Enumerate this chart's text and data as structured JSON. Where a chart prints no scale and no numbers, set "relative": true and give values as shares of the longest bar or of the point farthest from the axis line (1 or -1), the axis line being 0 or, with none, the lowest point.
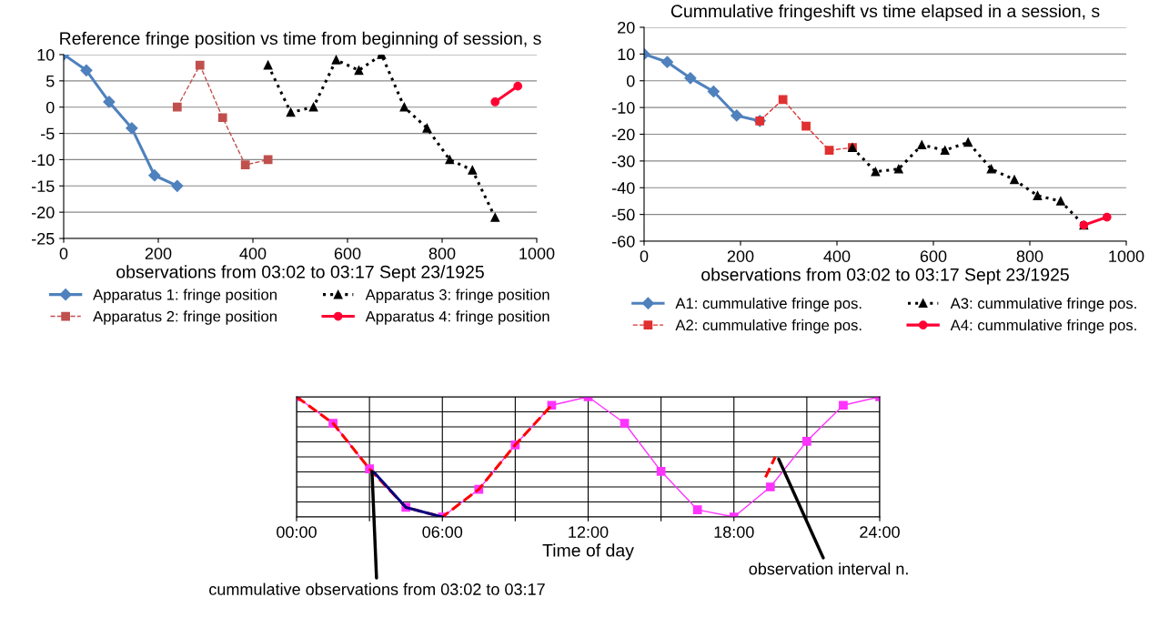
{
  "chart_data": [
    {
      "type": "line",
      "title": "Reference fringe position vs time from beginning of session, s",
      "xlabel": "observations from 03:02 to 03:17 Sept 23/1925",
      "xlim": [
        0,
        1000
      ],
      "xticks": [
        0,
        200,
        400,
        600,
        800,
        1000
      ],
      "ylim": [
        -25,
        10
      ],
      "yticks": [
        -25,
        -20,
        -15,
        -10,
        -5,
        0,
        5,
        10
      ],
      "grid": "y",
      "legend": "bottom",
      "series": [
        {
          "name": "Apparatus 1: fringe position",
          "color": "#4f81bd",
          "marker": "diamond",
          "line_style": "solid",
          "x": [
            0,
            48,
            96,
            144,
            192,
            240
          ],
          "values": [
            10,
            7,
            1,
            -4,
            -13,
            -15
          ]
        },
        {
          "name": "Apparatus 2: fringe position",
          "color": "#c0504d",
          "marker": "square",
          "line_style": "dashed",
          "x": [
            240,
            288,
            336,
            384,
            432
          ],
          "values": [
            0,
            8,
            -2,
            -11,
            -10
          ]
        },
        {
          "name": "Apparatus 3: fringe position",
          "color": "#000000",
          "marker": "triangle",
          "line_style": "dotted",
          "x": [
            432,
            480,
            528,
            576,
            624,
            672,
            720,
            768,
            816,
            864,
            912
          ],
          "values": [
            8,
            -1,
            0,
            9,
            7,
            10,
            0,
            -4,
            -10,
            -12,
            -21
          ]
        },
        {
          "name": "Apparatus 4: fringe position",
          "color": "#ff0033",
          "marker": "circle",
          "line_style": "solid",
          "x": [
            912,
            960
          ],
          "values": [
            1,
            4
          ]
        }
      ]
    },
    {
      "type": "line",
      "title": "Cummulative fringeshift vs time elapsed in a session, s",
      "xlabel": "observations from 03:02 to 03:17 Sept 23/1925",
      "xlim": [
        0,
        1000
      ],
      "xticks": [
        0,
        200,
        400,
        600,
        800,
        1000
      ],
      "ylim": [
        -60,
        20
      ],
      "yticks": [
        -60,
        -50,
        -40,
        -30,
        -20,
        -10,
        0,
        10,
        20
      ],
      "grid": "y",
      "legend": "bottom",
      "series": [
        {
          "name": "A1: cummulative fringe pos.",
          "color": "#4f81bd",
          "marker": "diamond",
          "line_style": "solid",
          "x": [
            0,
            48,
            96,
            144,
            192,
            240
          ],
          "values": [
            10,
            7,
            1,
            -4,
            -13,
            -15
          ]
        },
        {
          "name": "A2: cummulative fringe pos.",
          "color": "#e03030",
          "marker": "square",
          "line_style": "dashed",
          "x": [
            240,
            288,
            336,
            384,
            432
          ],
          "values": [
            -15,
            -7,
            -17,
            -26,
            -25
          ]
        },
        {
          "name": "A3: cummulative fringe pos.",
          "color": "#000000",
          "marker": "triangle",
          "line_style": "dotted",
          "x": [
            432,
            480,
            528,
            576,
            624,
            672,
            720,
            768,
            816,
            864,
            912
          ],
          "values": [
            -25,
            -34,
            -33,
            -24,
            -26,
            -23,
            -33,
            -37,
            -43,
            -45,
            -54
          ]
        },
        {
          "name": "A4: cummulative fringe pos.",
          "color": "#ff0033",
          "marker": "circle",
          "line_style": "solid",
          "x": [
            912,
            960
          ],
          "values": [
            -54,
            -51
          ]
        }
      ]
    },
    {
      "type": "line",
      "relative": true,
      "xlabel": "Time of day",
      "xlim": [
        0,
        24
      ],
      "xticks": [
        {
          "value": 0,
          "label": "00:00"
        },
        {
          "value": 3,
          "label": null
        },
        {
          "value": 6,
          "label": "06:00"
        },
        {
          "value": 9,
          "label": null
        },
        {
          "value": 12,
          "label": "12:00"
        },
        {
          "value": 15,
          "label": null
        },
        {
          "value": 18,
          "label": "18:00"
        },
        {
          "value": 21,
          "label": null
        },
        {
          "value": 24,
          "label": "24:00"
        }
      ],
      "grid": true,
      "annotations": [
        {
          "text": "cummulative observations from 03:02 to 03:17",
          "x": 3.1,
          "y": 0.4
        },
        {
          "text": "observation interval n.",
          "x": 19.8,
          "y": 0.5
        }
      ],
      "series": [
        {
          "color": "#ff33ff",
          "marker": "square",
          "line_style": "solid",
          "x": [
            0,
            1.5,
            3,
            4.5,
            6,
            7.5,
            9,
            10.5,
            12,
            13.5,
            15,
            16.5,
            18,
            19.5,
            21,
            22.5,
            24
          ],
          "values": [
            1,
            0.78,
            0.4,
            0.08,
            0,
            0.23,
            0.6,
            0.93,
            1,
            0.78,
            0.38,
            0.06,
            0,
            0.25,
            0.63,
            0.93,
            1
          ]
        },
        {
          "color": "#ff0000",
          "marker": "none",
          "line_style": "dashed",
          "x": [
            0,
            1.5,
            3,
            4.5,
            6,
            7.5,
            9,
            10.5,
            10.6,
            19.3,
            19.7
          ],
          "values": [
            1,
            0.78,
            0.4,
            0.08,
            0,
            0.23,
            0.6,
            0.93,
            null,
            0.33,
            0.5
          ]
        },
        {
          "color": "#000080",
          "marker": "none",
          "line_style": "solid",
          "x": [
            3.2,
            4.5,
            6
          ],
          "values": [
            0.37,
            0.08,
            0
          ]
        }
      ]
    }
  ]
}
